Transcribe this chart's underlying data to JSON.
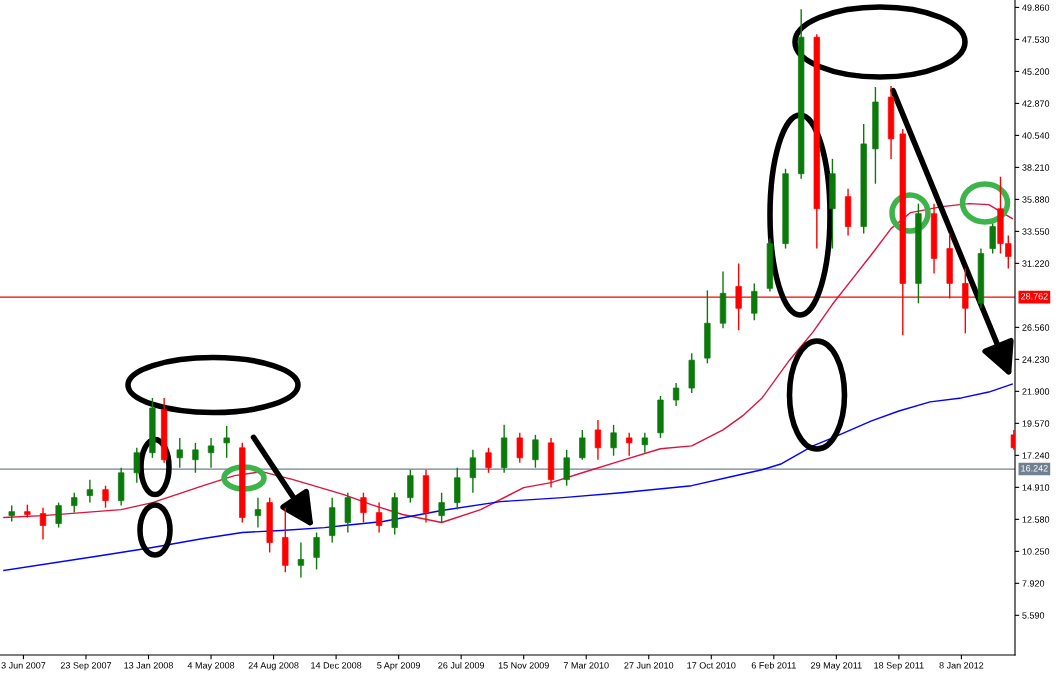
{
  "chart_data": {
    "type": "candlestick",
    "x": [
      "2007-05-13",
      "2007-06-10",
      "2007-07-08",
      "2007-08-05",
      "2007-09-02",
      "2007-09-30",
      "2007-10-28",
      "2007-11-25",
      "2007-12-23",
      "2008-01-20",
      "2008-02-10",
      "2008-03-09",
      "2008-04-06",
      "2008-05-04",
      "2008-06-01",
      "2008-06-29",
      "2008-07-27",
      "2008-08-17",
      "2008-09-14",
      "2008-10-12",
      "2008-11-09",
      "2008-12-07",
      "2009-01-04",
      "2009-02-01",
      "2009-03-01",
      "2009-03-29",
      "2009-04-26",
      "2009-05-24",
      "2009-06-21",
      "2009-07-19",
      "2009-08-16",
      "2009-09-13",
      "2009-10-11",
      "2009-11-08",
      "2009-12-06",
      "2010-01-03",
      "2010-01-31",
      "2010-02-28",
      "2010-03-28",
      "2010-04-25",
      "2010-05-23",
      "2010-06-20",
      "2010-07-18",
      "2010-08-15",
      "2010-09-12",
      "2010-10-10",
      "2010-11-07",
      "2010-12-05",
      "2011-01-02",
      "2011-01-30",
      "2011-02-27",
      "2011-03-27",
      "2011-04-24",
      "2011-05-22",
      "2011-06-19",
      "2011-07-17",
      "2011-08-07",
      "2011-09-04",
      "2011-09-25",
      "2011-10-23",
      "2011-11-20",
      "2011-12-18",
      "2012-01-15",
      "2012-02-12",
      "2012-03-04",
      "2012-03-18",
      "2012-04-01",
      "2012-04-11"
    ],
    "ohlc": [
      [
        12.85,
        13.58,
        12.42,
        13.14
      ],
      [
        13.14,
        13.65,
        12.71,
        12.93
      ],
      [
        13.0,
        13.43,
        11.11,
        12.13
      ],
      [
        12.27,
        13.8,
        11.98,
        13.58
      ],
      [
        13.58,
        14.52,
        13.07,
        14.16
      ],
      [
        14.31,
        15.47,
        13.8,
        14.74
      ],
      [
        14.74,
        15.03,
        13.43,
        13.94
      ],
      [
        13.94,
        16.34,
        13.58,
        15.97
      ],
      [
        15.97,
        17.79,
        15.25,
        17.43
      ],
      [
        17.43,
        21.42,
        17.06,
        20.69
      ],
      [
        20.55,
        21.42,
        16.7,
        16.92
      ],
      [
        17.06,
        18.51,
        16.34,
        17.64
      ],
      [
        16.92,
        18.15,
        15.97,
        17.64
      ],
      [
        17.43,
        18.51,
        16.34,
        17.93
      ],
      [
        18.15,
        19.38,
        17.06,
        18.51
      ],
      [
        17.79,
        18.15,
        12.35,
        12.71
      ],
      [
        12.85,
        14.16,
        11.98,
        13.29
      ],
      [
        13.8,
        14.16,
        10.17,
        10.89
      ],
      [
        11.26,
        13.43,
        8.72,
        9.23
      ],
      [
        9.23,
        10.89,
        8.35,
        9.66
      ],
      [
        9.81,
        11.62,
        8.93,
        11.26
      ],
      [
        11.4,
        14.16,
        10.89,
        13.43
      ],
      [
        12.35,
        14.52,
        11.62,
        14.16
      ],
      [
        14.16,
        14.52,
        12.35,
        13.07
      ],
      [
        13.07,
        13.8,
        11.62,
        12.13
      ],
      [
        11.98,
        14.52,
        11.47,
        14.16
      ],
      [
        14.16,
        16.19,
        13.8,
        15.76
      ],
      [
        15.76,
        16.19,
        12.35,
        13.07
      ],
      [
        12.85,
        14.52,
        12.35,
        13.8
      ],
      [
        13.8,
        16.34,
        13.29,
        15.61
      ],
      [
        15.61,
        17.64,
        14.52,
        17.06
      ],
      [
        17.43,
        17.79,
        15.97,
        16.34
      ],
      [
        16.34,
        19.46,
        15.97,
        18.51
      ],
      [
        18.51,
        18.88,
        16.7,
        17.06
      ],
      [
        16.92,
        18.73,
        16.34,
        18.37
      ],
      [
        18.15,
        18.51,
        14.89,
        15.47
      ],
      [
        15.47,
        17.64,
        15.03,
        17.06
      ],
      [
        17.06,
        19.09,
        16.92,
        18.51
      ],
      [
        19.09,
        19.82,
        16.92,
        17.79
      ],
      [
        17.79,
        19.46,
        17.21,
        18.88
      ],
      [
        18.51,
        18.88,
        17.21,
        18.15
      ],
      [
        18.01,
        18.88,
        17.43,
        18.51
      ],
      [
        18.88,
        21.56,
        18.51,
        21.27
      ],
      [
        21.27,
        22.5,
        20.84,
        22.14
      ],
      [
        22.14,
        24.68,
        21.78,
        24.17
      ],
      [
        24.32,
        29.25,
        23.94,
        26.86
      ],
      [
        26.86,
        30.63,
        26.5,
        29.04
      ],
      [
        29.54,
        31.21,
        26.35,
        27.95
      ],
      [
        27.59,
        29.76,
        27.08,
        29.18
      ],
      [
        29.4,
        33.03,
        29.18,
        32.66
      ],
      [
        32.66,
        38.11,
        32.3,
        37.75
      ],
      [
        37.75,
        49.72,
        37.38,
        47.69
      ],
      [
        47.69,
        47.9,
        32.3,
        35.2
      ],
      [
        35.2,
        38.83,
        32.3,
        37.75
      ],
      [
        36.08,
        36.66,
        33.25,
        33.9
      ],
      [
        33.9,
        41.37,
        33.39,
        39.92
      ],
      [
        39.56,
        44.06,
        37.02,
        42.97
      ],
      [
        43.33,
        44.13,
        38.83,
        40.29
      ],
      [
        40.65,
        41.01,
        25.99,
        29.76
      ],
      [
        29.76,
        35.57,
        28.31,
        34.84
      ],
      [
        34.84,
        35.57,
        30.49,
        31.58
      ],
      [
        32.3,
        33.39,
        28.67,
        29.76
      ],
      [
        29.76,
        30.85,
        26.13,
        27.95
      ],
      [
        28.31,
        32.3,
        27.95,
        31.94
      ],
      [
        32.3,
        34.12,
        31.94,
        33.9
      ],
      [
        35.2,
        37.53,
        31.94,
        32.66
      ],
      [
        32.66,
        33.25,
        30.85,
        31.72
      ],
      [
        18.73,
        19.09,
        17.64,
        17.79
      ]
    ],
    "series": [
      {
        "type": "line",
        "color": "#dc143c",
        "x": [
          "2007-04-29",
          "2007-07-08",
          "2007-11-25",
          "2008-01-20",
          "2008-04-20",
          "2008-06-15",
          "2008-08-03",
          "2008-09-28",
          "2008-12-28",
          "2009-02-15",
          "2009-04-12",
          "2009-06-21",
          "2009-08-30",
          "2009-11-15",
          "2010-01-03",
          "2010-02-28",
          "2010-05-09",
          "2010-07-18",
          "2010-09-12",
          "2010-11-07",
          "2010-12-12",
          "2011-01-16",
          "2011-03-06",
          "2011-04-17",
          "2011-05-22",
          "2011-06-26",
          "2011-07-31",
          "2011-09-04",
          "2011-10-09",
          "2011-12-04",
          "2012-01-22",
          "2012-02-26",
          "2012-04-08"
        ],
        "values": [
          12.71,
          12.85,
          13.29,
          13.8,
          15.03,
          15.76,
          16.05,
          15.47,
          14.38,
          13.65,
          12.93,
          12.35,
          13.29,
          14.89,
          15.25,
          15.97,
          16.85,
          17.72,
          17.93,
          19.09,
          20.11,
          21.42,
          24.17,
          26.21,
          28.24,
          30.05,
          31.87,
          33.75,
          34.92,
          35.35,
          35.57,
          35.5,
          34.48
        ]
      },
      {
        "type": "line",
        "color": "#0000ff",
        "x": [
          "2007-04-29",
          "2007-10-21",
          "2008-01-20",
          "2008-04-20",
          "2008-06-29",
          "2008-09-07",
          "2008-11-23",
          "2008-12-28",
          "2009-03-08",
          "2009-06-21",
          "2009-10-04",
          "2010-01-24",
          "2010-05-09",
          "2010-09-12",
          "2010-11-21",
          "2011-01-16",
          "2011-02-20",
          "2011-04-17",
          "2011-05-22",
          "2011-07-31",
          "2011-09-18",
          "2011-11-13",
          "2012-01-08",
          "2012-02-26",
          "2012-04-08"
        ],
        "values": [
          8.86,
          9.95,
          10.53,
          11.18,
          11.62,
          11.77,
          11.98,
          12.13,
          12.42,
          13.22,
          13.87,
          14.16,
          14.52,
          15.03,
          15.68,
          16.19,
          16.63,
          17.93,
          18.51,
          19.75,
          20.47,
          21.13,
          21.42,
          21.85,
          22.43
        ]
      }
    ],
    "ref_lines": [
      {
        "axis": "y",
        "value": 28.762,
        "label": "28.762",
        "color": "#ff0000"
      },
      {
        "axis": "y",
        "value": 16.242,
        "label": "16.242",
        "color": "#708090"
      }
    ],
    "xlim": [
      "2007-04-22",
      "2012-04-13"
    ],
    "xticks": [
      {
        "value": "2007-06-03",
        "label": "3 Jun 2007"
      },
      {
        "value": "2007-09-23",
        "label": "23 Sep 2007"
      },
      {
        "value": "2008-01-13",
        "label": "13 Jan 2008"
      },
      {
        "value": "2008-05-04",
        "label": "4 May 2008"
      },
      {
        "value": "2008-08-24",
        "label": "24 Aug 2008"
      },
      {
        "value": "2008-12-14",
        "label": "14 Dec 2008"
      },
      {
        "value": "2009-04-05",
        "label": "5 Apr 2009"
      },
      {
        "value": "2009-07-26",
        "label": "26 Jul 2009"
      },
      {
        "value": "2009-11-15",
        "label": "15 Nov 2009"
      },
      {
        "value": "2010-03-07",
        "label": "7 Mar 2010"
      },
      {
        "value": "2010-06-27",
        "label": "27 Jun 2010"
      },
      {
        "value": "2010-10-17",
        "label": "17 Oct 2010"
      },
      {
        "value": "2011-02-06",
        "label": "6 Feb 2011"
      },
      {
        "value": "2011-05-29",
        "label": "29 May 2011"
      },
      {
        "value": "2011-09-18",
        "label": "18 Sep 2011"
      },
      {
        "value": "2012-01-08",
        "label": "8 Jan 2012"
      }
    ],
    "ylim": [
      2.7,
      50.4
    ],
    "yticks": [
      {
        "value": 5.59,
        "label": "5.590"
      },
      {
        "value": 7.92,
        "label": "7.920"
      },
      {
        "value": 10.25,
        "label": "10.250"
      },
      {
        "value": 12.58,
        "label": "12.580"
      },
      {
        "value": 14.91,
        "label": "14.910"
      },
      {
        "value": 17.24,
        "label": "17.240"
      },
      {
        "value": 19.57,
        "label": "19.570"
      },
      {
        "value": 21.9,
        "label": "21.900"
      },
      {
        "value": 24.23,
        "label": "24.230"
      },
      {
        "value": 26.56,
        "label": "26.560"
      },
      {
        "value": 31.22,
        "label": "31.220"
      },
      {
        "value": 33.55,
        "label": "33.550"
      },
      {
        "value": 35.88,
        "label": "35.880"
      },
      {
        "value": 38.21,
        "label": "38.210"
      },
      {
        "value": 40.54,
        "label": "40.540"
      },
      {
        "value": 42.87,
        "label": "42.870"
      },
      {
        "value": 45.2,
        "label": "45.200"
      },
      {
        "value": 47.53,
        "label": "47.530"
      },
      {
        "value": 49.86,
        "label": "49.860"
      }
    ],
    "grid": false,
    "legend": false
  }
}
